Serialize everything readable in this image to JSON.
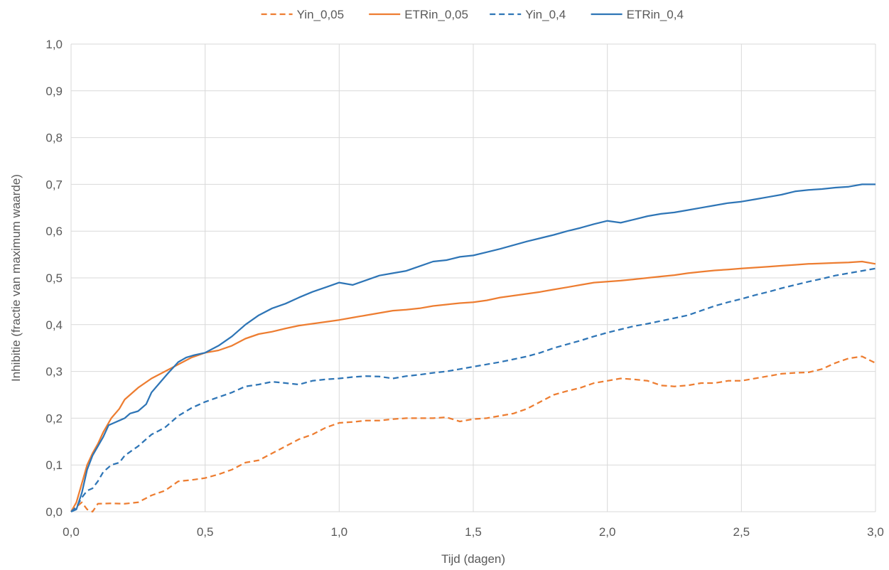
{
  "chart_data": {
    "type": "line",
    "xlabel": "Tijd (dagen)",
    "ylabel": "Inhibitie (fractie van maximum waarde)",
    "xlim": [
      0,
      3
    ],
    "ylim": [
      0,
      1
    ],
    "x_ticks": [
      "0,0",
      "0,5",
      "1,0",
      "1,5",
      "2,0",
      "2,5",
      "3,0"
    ],
    "y_ticks": [
      "0,0",
      "0,1",
      "0,2",
      "0,3",
      "0,4",
      "0,5",
      "0,6",
      "0,7",
      "0,8",
      "0,9",
      "1,0"
    ],
    "grid": true,
    "legend_position": "top",
    "series": [
      {
        "name": "Yin_0,05",
        "color": "#ed7d31",
        "dash": true,
        "points": [
          [
            0,
            0
          ],
          [
            0.02,
            0.01
          ],
          [
            0.04,
            0.02
          ],
          [
            0.06,
            0.005
          ],
          [
            0.08,
            0
          ],
          [
            0.1,
            0.017
          ],
          [
            0.15,
            0.018
          ],
          [
            0.2,
            0.017
          ],
          [
            0.25,
            0.02
          ],
          [
            0.3,
            0.035
          ],
          [
            0.35,
            0.045
          ],
          [
            0.4,
            0.065
          ],
          [
            0.45,
            0.068
          ],
          [
            0.5,
            0.072
          ],
          [
            0.55,
            0.08
          ],
          [
            0.6,
            0.09
          ],
          [
            0.65,
            0.105
          ],
          [
            0.7,
            0.11
          ],
          [
            0.75,
            0.125
          ],
          [
            0.8,
            0.14
          ],
          [
            0.85,
            0.155
          ],
          [
            0.9,
            0.165
          ],
          [
            0.95,
            0.18
          ],
          [
            1.0,
            0.19
          ],
          [
            1.05,
            0.192
          ],
          [
            1.1,
            0.195
          ],
          [
            1.15,
            0.195
          ],
          [
            1.2,
            0.198
          ],
          [
            1.25,
            0.2
          ],
          [
            1.3,
            0.2
          ],
          [
            1.35,
            0.2
          ],
          [
            1.4,
            0.202
          ],
          [
            1.45,
            0.193
          ],
          [
            1.5,
            0.198
          ],
          [
            1.55,
            0.2
          ],
          [
            1.6,
            0.205
          ],
          [
            1.65,
            0.21
          ],
          [
            1.7,
            0.22
          ],
          [
            1.75,
            0.235
          ],
          [
            1.8,
            0.25
          ],
          [
            1.85,
            0.258
          ],
          [
            1.9,
            0.265
          ],
          [
            1.95,
            0.275
          ],
          [
            2.0,
            0.28
          ],
          [
            2.05,
            0.285
          ],
          [
            2.1,
            0.283
          ],
          [
            2.15,
            0.28
          ],
          [
            2.2,
            0.27
          ],
          [
            2.25,
            0.268
          ],
          [
            2.3,
            0.27
          ],
          [
            2.35,
            0.275
          ],
          [
            2.4,
            0.275
          ],
          [
            2.45,
            0.28
          ],
          [
            2.5,
            0.28
          ],
          [
            2.55,
            0.285
          ],
          [
            2.6,
            0.29
          ],
          [
            2.65,
            0.295
          ],
          [
            2.7,
            0.297
          ],
          [
            2.75,
            0.298
          ],
          [
            2.8,
            0.305
          ],
          [
            2.85,
            0.318
          ],
          [
            2.9,
            0.328
          ],
          [
            2.95,
            0.332
          ],
          [
            3.0,
            0.318
          ]
        ]
      },
      {
        "name": "ETRin_0,05",
        "color": "#ed7d31",
        "dash": false,
        "points": [
          [
            0,
            0
          ],
          [
            0.02,
            0.02
          ],
          [
            0.04,
            0.06
          ],
          [
            0.06,
            0.1
          ],
          [
            0.08,
            0.125
          ],
          [
            0.1,
            0.145
          ],
          [
            0.12,
            0.17
          ],
          [
            0.15,
            0.2
          ],
          [
            0.18,
            0.22
          ],
          [
            0.2,
            0.24
          ],
          [
            0.25,
            0.265
          ],
          [
            0.3,
            0.285
          ],
          [
            0.35,
            0.3
          ],
          [
            0.4,
            0.315
          ],
          [
            0.45,
            0.33
          ],
          [
            0.5,
            0.34
          ],
          [
            0.55,
            0.345
          ],
          [
            0.6,
            0.355
          ],
          [
            0.65,
            0.37
          ],
          [
            0.7,
            0.38
          ],
          [
            0.75,
            0.385
          ],
          [
            0.8,
            0.392
          ],
          [
            0.85,
            0.398
          ],
          [
            0.9,
            0.402
          ],
          [
            0.95,
            0.406
          ],
          [
            1.0,
            0.41
          ],
          [
            1.05,
            0.415
          ],
          [
            1.1,
            0.42
          ],
          [
            1.15,
            0.425
          ],
          [
            1.2,
            0.43
          ],
          [
            1.25,
            0.432
          ],
          [
            1.3,
            0.435
          ],
          [
            1.35,
            0.44
          ],
          [
            1.4,
            0.443
          ],
          [
            1.45,
            0.446
          ],
          [
            1.5,
            0.448
          ],
          [
            1.55,
            0.452
          ],
          [
            1.6,
            0.458
          ],
          [
            1.65,
            0.462
          ],
          [
            1.7,
            0.466
          ],
          [
            1.75,
            0.47
          ],
          [
            1.8,
            0.475
          ],
          [
            1.85,
            0.48
          ],
          [
            1.9,
            0.485
          ],
          [
            1.95,
            0.49
          ],
          [
            2.0,
            0.492
          ],
          [
            2.05,
            0.494
          ],
          [
            2.1,
            0.497
          ],
          [
            2.15,
            0.5
          ],
          [
            2.2,
            0.503
          ],
          [
            2.25,
            0.506
          ],
          [
            2.3,
            0.51
          ],
          [
            2.35,
            0.513
          ],
          [
            2.4,
            0.516
          ],
          [
            2.45,
            0.518
          ],
          [
            2.5,
            0.52
          ],
          [
            2.55,
            0.522
          ],
          [
            2.6,
            0.524
          ],
          [
            2.65,
            0.526
          ],
          [
            2.7,
            0.528
          ],
          [
            2.75,
            0.53
          ],
          [
            2.8,
            0.531
          ],
          [
            2.85,
            0.532
          ],
          [
            2.9,
            0.533
          ],
          [
            2.95,
            0.535
          ],
          [
            3.0,
            0.53
          ]
        ]
      },
      {
        "name": "Yin_0,4",
        "color": "#2e75b6",
        "dash": true,
        "points": [
          [
            0,
            0
          ],
          [
            0.02,
            0.01
          ],
          [
            0.04,
            0.03
          ],
          [
            0.06,
            0.045
          ],
          [
            0.08,
            0.05
          ],
          [
            0.1,
            0.065
          ],
          [
            0.12,
            0.085
          ],
          [
            0.15,
            0.1
          ],
          [
            0.18,
            0.105
          ],
          [
            0.2,
            0.12
          ],
          [
            0.25,
            0.14
          ],
          [
            0.3,
            0.165
          ],
          [
            0.35,
            0.18
          ],
          [
            0.4,
            0.205
          ],
          [
            0.45,
            0.222
          ],
          [
            0.5,
            0.235
          ],
          [
            0.55,
            0.245
          ],
          [
            0.6,
            0.255
          ],
          [
            0.65,
            0.268
          ],
          [
            0.7,
            0.272
          ],
          [
            0.75,
            0.278
          ],
          [
            0.8,
            0.275
          ],
          [
            0.85,
            0.272
          ],
          [
            0.9,
            0.28
          ],
          [
            0.95,
            0.283
          ],
          [
            1.0,
            0.285
          ],
          [
            1.05,
            0.288
          ],
          [
            1.1,
            0.29
          ],
          [
            1.15,
            0.289
          ],
          [
            1.2,
            0.285
          ],
          [
            1.25,
            0.29
          ],
          [
            1.3,
            0.293
          ],
          [
            1.35,
            0.297
          ],
          [
            1.4,
            0.3
          ],
          [
            1.45,
            0.305
          ],
          [
            1.5,
            0.31
          ],
          [
            1.55,
            0.315
          ],
          [
            1.6,
            0.32
          ],
          [
            1.65,
            0.326
          ],
          [
            1.7,
            0.332
          ],
          [
            1.75,
            0.34
          ],
          [
            1.8,
            0.35
          ],
          [
            1.85,
            0.358
          ],
          [
            1.9,
            0.366
          ],
          [
            1.95,
            0.375
          ],
          [
            2.0,
            0.383
          ],
          [
            2.05,
            0.39
          ],
          [
            2.1,
            0.397
          ],
          [
            2.15,
            0.402
          ],
          [
            2.2,
            0.408
          ],
          [
            2.25,
            0.414
          ],
          [
            2.3,
            0.42
          ],
          [
            2.35,
            0.43
          ],
          [
            2.4,
            0.44
          ],
          [
            2.45,
            0.448
          ],
          [
            2.5,
            0.455
          ],
          [
            2.55,
            0.463
          ],
          [
            2.6,
            0.47
          ],
          [
            2.65,
            0.478
          ],
          [
            2.7,
            0.485
          ],
          [
            2.75,
            0.492
          ],
          [
            2.8,
            0.498
          ],
          [
            2.85,
            0.505
          ],
          [
            2.9,
            0.51
          ],
          [
            2.95,
            0.515
          ],
          [
            3.0,
            0.52
          ]
        ]
      },
      {
        "name": "ETRin_0,4",
        "color": "#2e75b6",
        "dash": false,
        "points": [
          [
            0,
            0
          ],
          [
            0.02,
            0.005
          ],
          [
            0.04,
            0.04
          ],
          [
            0.06,
            0.09
          ],
          [
            0.08,
            0.12
          ],
          [
            0.1,
            0.14
          ],
          [
            0.12,
            0.16
          ],
          [
            0.14,
            0.185
          ],
          [
            0.16,
            0.19
          ],
          [
            0.18,
            0.195
          ],
          [
            0.2,
            0.2
          ],
          [
            0.22,
            0.21
          ],
          [
            0.25,
            0.215
          ],
          [
            0.28,
            0.23
          ],
          [
            0.3,
            0.255
          ],
          [
            0.33,
            0.275
          ],
          [
            0.36,
            0.295
          ],
          [
            0.4,
            0.32
          ],
          [
            0.43,
            0.33
          ],
          [
            0.46,
            0.335
          ],
          [
            0.5,
            0.34
          ],
          [
            0.55,
            0.355
          ],
          [
            0.6,
            0.375
          ],
          [
            0.65,
            0.4
          ],
          [
            0.7,
            0.42
          ],
          [
            0.75,
            0.435
          ],
          [
            0.8,
            0.445
          ],
          [
            0.85,
            0.458
          ],
          [
            0.9,
            0.47
          ],
          [
            0.95,
            0.48
          ],
          [
            1.0,
            0.49
          ],
          [
            1.05,
            0.485
          ],
          [
            1.1,
            0.495
          ],
          [
            1.15,
            0.505
          ],
          [
            1.2,
            0.51
          ],
          [
            1.25,
            0.515
          ],
          [
            1.3,
            0.525
          ],
          [
            1.35,
            0.535
          ],
          [
            1.4,
            0.538
          ],
          [
            1.45,
            0.545
          ],
          [
            1.5,
            0.548
          ],
          [
            1.55,
            0.555
          ],
          [
            1.6,
            0.562
          ],
          [
            1.65,
            0.57
          ],
          [
            1.7,
            0.578
          ],
          [
            1.75,
            0.585
          ],
          [
            1.8,
            0.592
          ],
          [
            1.85,
            0.6
          ],
          [
            1.9,
            0.607
          ],
          [
            1.95,
            0.615
          ],
          [
            2.0,
            0.622
          ],
          [
            2.05,
            0.618
          ],
          [
            2.1,
            0.625
          ],
          [
            2.15,
            0.632
          ],
          [
            2.2,
            0.637
          ],
          [
            2.25,
            0.64
          ],
          [
            2.3,
            0.645
          ],
          [
            2.35,
            0.65
          ],
          [
            2.4,
            0.655
          ],
          [
            2.45,
            0.66
          ],
          [
            2.5,
            0.663
          ],
          [
            2.55,
            0.668
          ],
          [
            2.6,
            0.673
          ],
          [
            2.65,
            0.678
          ],
          [
            2.7,
            0.685
          ],
          [
            2.75,
            0.688
          ],
          [
            2.8,
            0.69
          ],
          [
            2.85,
            0.693
          ],
          [
            2.9,
            0.695
          ],
          [
            2.95,
            0.7
          ],
          [
            3.0,
            0.7
          ]
        ]
      }
    ]
  }
}
